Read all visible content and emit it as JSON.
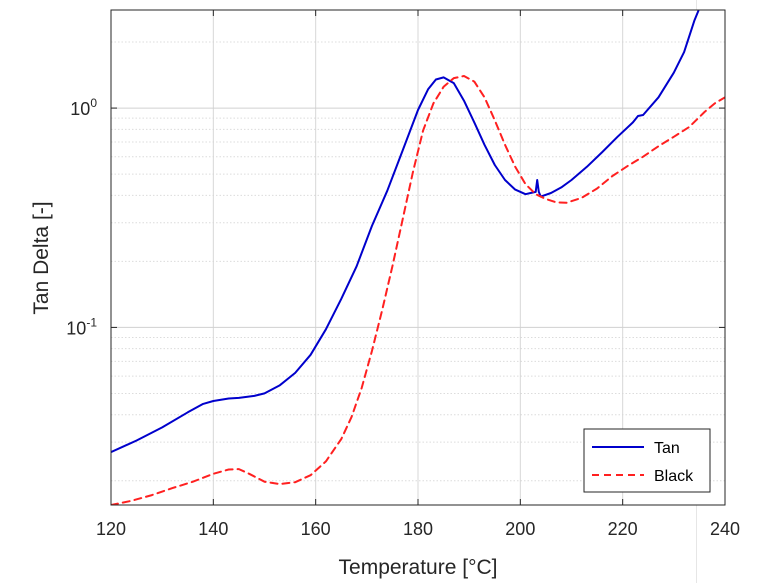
{
  "chart_data": {
    "type": "line",
    "title": "",
    "xlabel": "Temperature [°C]",
    "ylabel": "Tan Delta [-]",
    "xlim": [
      120,
      240
    ],
    "ylim": [
      0.0155,
      2.8
    ],
    "yscale": "log",
    "grid": true,
    "legend": "bottom-right",
    "xticks": [
      120,
      140,
      160,
      180,
      200,
      220,
      240
    ],
    "yticks": [
      {
        "value": 1,
        "base": "10",
        "exp": "0"
      },
      {
        "value": 0.1,
        "base": "10",
        "exp": "-1"
      }
    ],
    "series": [
      {
        "name": "Tan",
        "color": "#0000cc",
        "style": "solid",
        "x": [
          120,
          125,
          130,
          135,
          138,
          140,
          143,
          145,
          148,
          150,
          153,
          156,
          159,
          162,
          165,
          168,
          171,
          174,
          177,
          180,
          182,
          183.5,
          185,
          187,
          189,
          191,
          193,
          195,
          197,
          199,
          201,
          202,
          203,
          203.3,
          203.6,
          204,
          206,
          208,
          210,
          213,
          216,
          219,
          222,
          223,
          224,
          227,
          230,
          232,
          234,
          234.8
        ],
        "y": [
          0.027,
          0.0305,
          0.035,
          0.041,
          0.0448,
          0.0462,
          0.0474,
          0.0477,
          0.0487,
          0.05,
          0.0545,
          0.062,
          0.075,
          0.098,
          0.135,
          0.19,
          0.29,
          0.42,
          0.64,
          0.98,
          1.22,
          1.35,
          1.38,
          1.3,
          1.08,
          0.86,
          0.68,
          0.55,
          0.47,
          0.425,
          0.405,
          0.41,
          0.415,
          0.47,
          0.415,
          0.395,
          0.41,
          0.435,
          0.47,
          0.54,
          0.63,
          0.74,
          0.86,
          0.92,
          0.93,
          1.12,
          1.45,
          1.8,
          2.5,
          2.78
        ]
      },
      {
        "name": "Black",
        "color": "#ff2020",
        "style": "dashed",
        "x": [
          120,
          124,
          128,
          132,
          136,
          140,
          143,
          145,
          147,
          150,
          153,
          156,
          159,
          162,
          165,
          167,
          169,
          171,
          173,
          175,
          177,
          179,
          181,
          183,
          185,
          187,
          189,
          191,
          193,
          195,
          197,
          199,
          201,
          203,
          205,
          207,
          209,
          212,
          215,
          218,
          221,
          224,
          227,
          230,
          233,
          236,
          238,
          240
        ],
        "y": [
          0.0155,
          0.0162,
          0.0172,
          0.0185,
          0.0198,
          0.0215,
          0.0225,
          0.0226,
          0.0215,
          0.0198,
          0.0193,
          0.0197,
          0.0212,
          0.0245,
          0.031,
          0.039,
          0.053,
          0.078,
          0.12,
          0.19,
          0.31,
          0.51,
          0.79,
          1.05,
          1.25,
          1.37,
          1.4,
          1.32,
          1.12,
          0.88,
          0.68,
          0.54,
          0.45,
          0.405,
          0.385,
          0.372,
          0.37,
          0.39,
          0.43,
          0.49,
          0.545,
          0.6,
          0.67,
          0.74,
          0.82,
          0.96,
          1.05,
          1.12
        ]
      }
    ]
  }
}
